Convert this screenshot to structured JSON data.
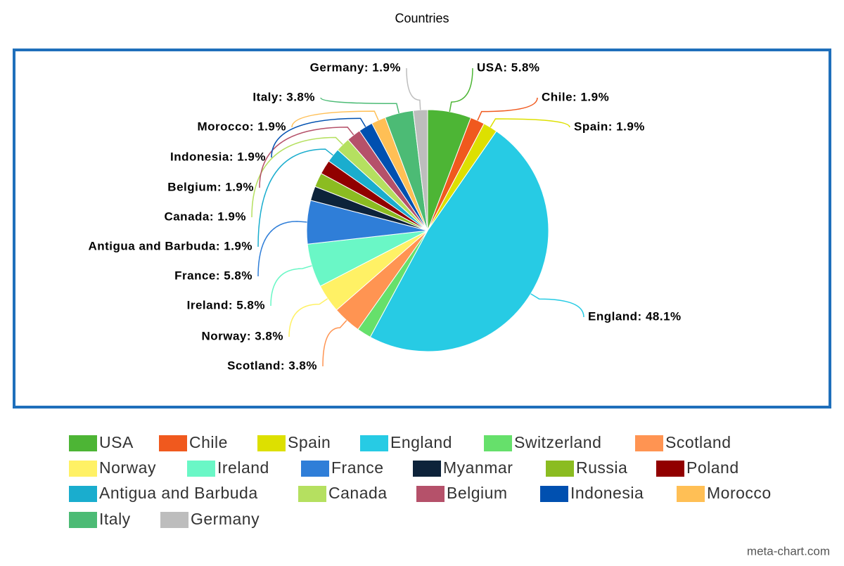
{
  "chart_data": {
    "type": "pie",
    "title": "Countries",
    "credit": "meta-chart.com",
    "categories": [
      "USA",
      "Chile",
      "Spain",
      "England",
      "Switzerland",
      "Scotland",
      "Norway",
      "Ireland",
      "France",
      "Myanmar",
      "Russia",
      "Poland",
      "Antigua and Barbuda",
      "Canada",
      "Belgium",
      "Indonesia",
      "Morocco",
      "Italy",
      "Germany"
    ],
    "values": [
      5.8,
      1.9,
      1.9,
      48.1,
      1.9,
      3.8,
      3.8,
      5.8,
      5.8,
      1.9,
      1.9,
      1.9,
      1.9,
      1.9,
      1.9,
      1.9,
      1.9,
      3.8,
      1.9
    ],
    "value_labels": [
      "USA: 5.8%",
      "Chile: 1.9%",
      "Spain: 1.9%",
      "England: 48.1%",
      null,
      "Scotland: 3.8%",
      "Norway: 3.8%",
      "Ireland: 5.8%",
      "France: 5.8%",
      null,
      null,
      null,
      "Antigua and Barbuda: 1.9%",
      "Canada: 1.9%",
      "Belgium: 1.9%",
      "Indonesia: 1.9%",
      "Morocco: 1.9%",
      "Italy: 3.8%",
      "Germany: 1.9%"
    ],
    "colors": [
      "#4db535",
      "#f0591e",
      "#dde000",
      "#27cbe4",
      "#66e06b",
      "#ff9452",
      "#fff165",
      "#6af7c6",
      "#2f7ed8",
      "#0d233a",
      "#8bbc21",
      "#910000",
      "#1aadce",
      "#b5e060",
      "#b5516a",
      "#0050b0",
      "#ffbf55",
      "#4cbb75",
      "#bdbdbd"
    ]
  }
}
